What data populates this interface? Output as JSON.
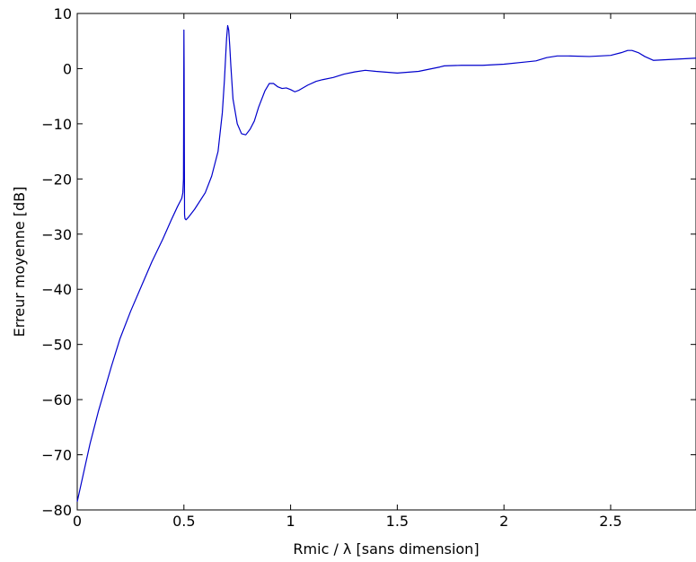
{
  "chart_data": {
    "type": "line",
    "title": "",
    "xlabel": "Rmic / λ  [sans dimension]",
    "ylabel": "Erreur moyenne [dB]",
    "xlim": [
      0,
      2.9
    ],
    "ylim": [
      -80,
      10
    ],
    "grid": false,
    "xticks": [
      0,
      0.5,
      1,
      1.5,
      2,
      2.5
    ],
    "xtick_labels": [
      "0",
      "0.5",
      "1",
      "1.5",
      "2",
      "2.5"
    ],
    "yticks": [
      10,
      0,
      -10,
      -20,
      -30,
      -40,
      -50,
      -60,
      -70,
      -80
    ],
    "ytick_labels": [
      "10",
      "0",
      "−10",
      "−20",
      "−30",
      "−40",
      "−50",
      "−60",
      "−70",
      "−80"
    ],
    "series": [
      {
        "color": "#0000cc",
        "x": [
          0.0,
          0.02,
          0.04,
          0.06,
          0.08,
          0.1,
          0.13,
          0.16,
          0.2,
          0.25,
          0.3,
          0.35,
          0.4,
          0.44,
          0.47,
          0.49,
          0.495,
          0.498,
          0.5,
          0.501,
          0.502,
          0.503,
          0.505,
          0.51,
          0.52,
          0.55,
          0.6,
          0.63,
          0.66,
          0.68,
          0.69,
          0.7,
          0.705,
          0.71,
          0.715,
          0.72,
          0.73,
          0.75,
          0.77,
          0.79,
          0.81,
          0.83,
          0.85,
          0.88,
          0.9,
          0.92,
          0.94,
          0.96,
          0.98,
          1.0,
          1.02,
          1.04,
          1.08,
          1.12,
          1.15,
          1.2,
          1.25,
          1.3,
          1.35,
          1.4,
          1.5,
          1.6,
          1.7,
          1.72,
          1.8,
          1.9,
          2.0,
          2.1,
          2.15,
          2.2,
          2.25,
          2.3,
          2.4,
          2.5,
          2.55,
          2.58,
          2.6,
          2.63,
          2.66,
          2.7,
          2.75,
          2.8,
          2.85,
          2.9
        ],
        "y": [
          -78.5,
          -75.0,
          -71.5,
          -68.0,
          -65.0,
          -62.0,
          -58.0,
          -54.0,
          -49.0,
          -44.0,
          -39.5,
          -35.0,
          -31.0,
          -27.5,
          -25.0,
          -23.5,
          -22.5,
          -20.0,
          7.0,
          0.0,
          -15.0,
          -26.5,
          -27.2,
          -27.4,
          -27.0,
          -25.5,
          -22.5,
          -19.5,
          -15.0,
          -8.0,
          -2.0,
          5.5,
          7.8,
          7.0,
          4.0,
          0.5,
          -5.5,
          -10.0,
          -11.8,
          -12.0,
          -11.0,
          -9.5,
          -7.0,
          -4.0,
          -2.7,
          -2.7,
          -3.3,
          -3.6,
          -3.5,
          -3.8,
          -4.2,
          -3.9,
          -3.0,
          -2.3,
          -2.0,
          -1.6,
          -1.0,
          -0.6,
          -0.3,
          -0.5,
          -0.8,
          -0.5,
          0.3,
          0.5,
          0.6,
          0.6,
          0.8,
          1.2,
          1.4,
          2.0,
          2.3,
          2.3,
          2.2,
          2.4,
          2.9,
          3.3,
          3.3,
          2.9,
          2.2,
          1.5,
          1.6,
          1.7,
          1.8,
          1.9
        ]
      }
    ]
  }
}
